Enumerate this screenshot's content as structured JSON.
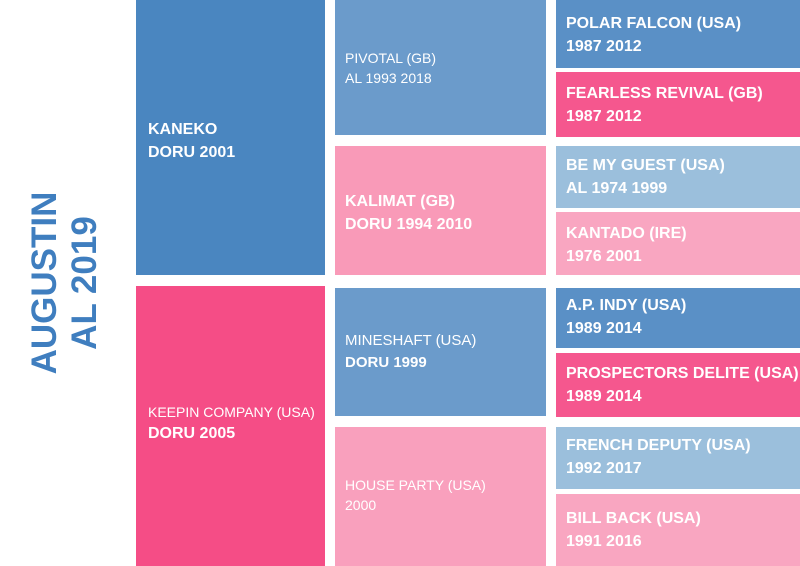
{
  "subject": {
    "line1": "AUGUSTIN",
    "line2": "AL 2019"
  },
  "nodes": [
    {
      "line1": "KANEKO",
      "line2": "DORU 2001"
    },
    {
      "line1": "KEEPIN COMPANY (USA)",
      "line2": "DORU 2005"
    },
    {
      "line1": "PIVOTAL (GB)",
      "line2": "AL 1993 2018"
    },
    {
      "line1": "KALIMAT (GB)",
      "line2": "DORU 1994 2010"
    },
    {
      "line1": "MINESHAFT (USA)",
      "line2": "DORU 1999"
    },
    {
      "line1": "HOUSE PARTY (USA)",
      "line2": "2000"
    },
    {
      "line1": "POLAR FALCON (USA)",
      "line2": "1987 2012"
    },
    {
      "line1": "FEARLESS REVIVAL (GB)",
      "line2": "1987 2012"
    },
    {
      "line1": "BE MY GUEST (USA)",
      "line2": "AL 1974 1999"
    },
    {
      "line1": "KANTADO (IRE)",
      "line2": "1976 2001"
    },
    {
      "line1": "A.P. INDY (USA)",
      "line2": "1989 2014"
    },
    {
      "line1": "PROSPECTORS DELITE (USA)",
      "line2": "1989 2014"
    },
    {
      "line1": "FRENCH DEPUTY (USA)",
      "line2": "1992 2017"
    },
    {
      "line1": "BILL BACK (USA)",
      "line2": "1991 2016"
    }
  ]
}
